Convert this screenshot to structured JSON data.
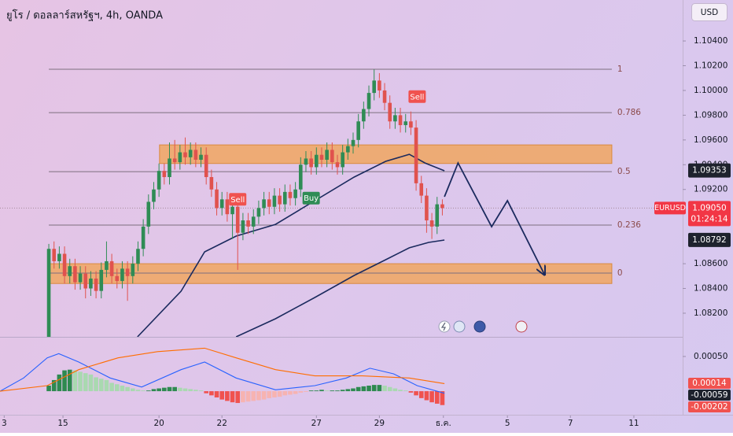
{
  "header": {
    "title": "ยูโร / ดอลลาร์สหรัฐฯ, 4h, OANDA",
    "currency_button": "USD"
  },
  "chart_data": [
    {
      "type": "candlestick",
      "xlim": [
        -9.3,
        120.8
      ],
      "xticks": [
        {
          "value": -8.5,
          "label": "3"
        },
        {
          "value": 2.7,
          "label": "15"
        },
        {
          "value": 21,
          "label": "20"
        },
        {
          "value": 33,
          "label": "22"
        },
        {
          "value": 51,
          "label": "27"
        },
        {
          "value": 63,
          "label": "29"
        },
        {
          "value": 75.2,
          "label": "ธ.ค."
        },
        {
          "value": 87.4,
          "label": "5"
        },
        {
          "value": 99.4,
          "label": "7"
        },
        {
          "value": 111.5,
          "label": "11"
        }
      ],
      "ylim": [
        1.08009,
        1.10731
      ],
      "yticks": [
        {
          "value": 1.104,
          "label": "1.10400"
        },
        {
          "value": 1.102,
          "label": "1.10200"
        },
        {
          "value": 1.1,
          "label": "1.10000"
        },
        {
          "value": 1.098,
          "label": "1.09800"
        },
        {
          "value": 1.096,
          "label": "1.09600"
        },
        {
          "value": 1.094,
          "label": "1.09400"
        },
        {
          "value": 1.092,
          "label": "1.09200"
        },
        {
          "value": 1.086,
          "label": "1.08600"
        },
        {
          "value": 1.084,
          "label": "1.08400"
        },
        {
          "value": 1.082,
          "label": "1.08200"
        }
      ],
      "colors": {
        "up": "#2f8c55",
        "down": "#e0524e"
      },
      "open": [
        1.08,
        1.0872,
        1.0862,
        1.0868,
        1.085,
        1.0858,
        1.0845,
        1.0852,
        1.084,
        1.0848,
        1.0838,
        1.0855,
        1.0862,
        1.085,
        1.0846,
        1.0856,
        1.085,
        1.086,
        1.0872,
        1.089,
        1.091,
        1.092,
        1.0935,
        1.093,
        1.0945,
        1.0942,
        1.095,
        1.0946,
        1.0952,
        1.0944,
        1.0948,
        1.093,
        1.092,
        1.0905,
        1.0912,
        1.09,
        1.0906,
        1.0885,
        1.0895,
        1.089,
        1.0898,
        1.0905,
        1.0912,
        1.0906,
        1.0915,
        1.0908,
        1.0918,
        1.0913,
        1.092,
        1.094,
        1.0945,
        1.0938,
        1.0948,
        1.0944,
        1.0952,
        1.0942,
        1.0938,
        1.095,
        1.0955,
        1.096,
        1.0975,
        1.0985,
        1.0998,
        1.1008,
        1.1,
        1.099,
        1.0975,
        1.098,
        1.0972,
        1.0975,
        1.097,
        1.0925,
        1.0915,
        1.0895,
        1.089,
        1.0908
      ],
      "high": [
        1.0876,
        1.0878,
        1.0874,
        1.0874,
        1.0864,
        1.0864,
        1.0858,
        1.0858,
        1.0854,
        1.0854,
        1.0861,
        1.0878,
        1.0868,
        1.0856,
        1.0862,
        1.0862,
        1.0866,
        1.0878,
        1.0896,
        1.0916,
        1.0926,
        1.0941,
        1.0941,
        1.0958,
        1.096,
        1.0956,
        1.0962,
        1.0958,
        1.0958,
        1.0954,
        1.0954,
        1.0936,
        1.0926,
        1.0918,
        1.0918,
        1.0912,
        1.0912,
        1.0901,
        1.0901,
        1.0904,
        1.0911,
        1.0918,
        1.0918,
        1.0921,
        1.0921,
        1.0924,
        1.0924,
        1.0926,
        1.0946,
        1.0951,
        1.0951,
        1.0954,
        1.0954,
        1.0958,
        1.0958,
        1.0948,
        1.0956,
        1.0961,
        1.0966,
        1.0981,
        1.0991,
        1.1004,
        1.1017,
        1.1014,
        1.1006,
        1.0996,
        1.0986,
        1.0986,
        1.0981,
        1.0983,
        1.0976,
        1.0931,
        1.0921,
        1.0901,
        1.0914,
        1.0912
      ],
      "low": [
        1.0798,
        1.0856,
        1.0856,
        1.0844,
        1.0844,
        1.0839,
        1.0839,
        1.0832,
        1.0834,
        1.0832,
        1.0832,
        1.0849,
        1.0844,
        1.084,
        1.084,
        1.083,
        1.0844,
        1.0854,
        1.0866,
        1.0884,
        1.0904,
        1.0914,
        1.0924,
        1.0924,
        1.0936,
        1.0936,
        1.094,
        1.094,
        1.0938,
        1.0938,
        1.0924,
        1.0914,
        1.0899,
        1.0899,
        1.0894,
        1.088,
        1.0855,
        1.0879,
        1.0884,
        1.0884,
        1.0892,
        1.0899,
        1.09,
        1.09,
        1.0902,
        1.0902,
        1.0907,
        1.0907,
        1.0914,
        1.0934,
        1.0932,
        1.0932,
        1.0938,
        1.0938,
        1.0936,
        1.0932,
        1.0932,
        1.0944,
        1.0949,
        1.0954,
        1.0969,
        1.0979,
        1.0992,
        1.0994,
        1.0984,
        1.0969,
        1.0969,
        1.0966,
        1.0966,
        1.0964,
        1.0919,
        1.0909,
        1.0885,
        1.088,
        1.0884,
        1.0899
      ],
      "close": [
        1.0872,
        1.0862,
        1.0868,
        1.085,
        1.0858,
        1.0845,
        1.0852,
        1.084,
        1.0848,
        1.0838,
        1.0855,
        1.0862,
        1.085,
        1.0846,
        1.0856,
        1.085,
        1.086,
        1.0872,
        1.089,
        1.091,
        1.092,
        1.0935,
        1.093,
        1.0945,
        1.0942,
        1.095,
        1.0946,
        1.0952,
        1.0944,
        1.0948,
        1.093,
        1.092,
        1.0905,
        1.0912,
        1.09,
        1.0906,
        1.0885,
        1.0895,
        1.089,
        1.0898,
        1.0905,
        1.0912,
        1.0906,
        1.0915,
        1.0908,
        1.0918,
        1.0913,
        1.092,
        1.094,
        1.0945,
        1.0938,
        1.0948,
        1.0944,
        1.0952,
        1.0942,
        1.0938,
        1.095,
        1.0955,
        1.096,
        1.0975,
        1.0985,
        1.0998,
        1.1008,
        1.1,
        1.099,
        1.0975,
        1.098,
        1.0972,
        1.0975,
        1.097,
        1.0925,
        1.0915,
        1.0895,
        1.089,
        1.0908,
        1.0905
      ],
      "overlays": [
        {
          "color": "#1b2a5e",
          "x": [
            16.9,
            25.2,
            29.7,
            35.7,
            43.2,
            50.7,
            58.2,
            64.2,
            68.7,
            71.7,
            75.4
          ],
          "values": [
            1.08009,
            1.08378,
            1.08696,
            1.08823,
            1.08918,
            1.09109,
            1.093,
            1.09427,
            1.09484,
            1.09414,
            1.09351
          ]
        },
        {
          "color": "#1b2a5e",
          "x": [
            35.7,
            43.2,
            50.7,
            58.2,
            64.2,
            68.7,
            72.4,
            75.4
          ],
          "values": [
            1.08009,
            1.08155,
            1.08327,
            1.08505,
            1.08632,
            1.08728,
            1.08772,
            1.08791
          ]
        }
      ],
      "fib_x": [
        0,
        107.3
      ],
      "fib_levels": [
        {
          "label": "1",
          "value": 1.10171
        },
        {
          "label": "0.786",
          "value": 1.09821
        },
        {
          "label": "0.5",
          "value": 1.09344
        },
        {
          "label": "0.236",
          "value": 1.08912
        },
        {
          "label": "0",
          "value": 1.08524
        }
      ],
      "zones": [
        {
          "x": [
            21.1,
            107.3
          ],
          "values": [
            1.0956,
            1.0941
          ]
        },
        {
          "x": [
            0,
            107.3
          ],
          "values": [
            1.086,
            1.0844
          ]
        }
      ],
      "zone_color": "#f0a660",
      "projection": {
        "color": "#1b2a5e",
        "x": [
          75.4,
          78,
          84.4,
          87.4,
          94.4
        ],
        "values": [
          1.09141,
          1.09414,
          1.08899,
          1.09109,
          1.08518
        ]
      },
      "signals": [
        {
          "label": "Sell",
          "x": 70.2,
          "value": 1.0995,
          "color": "#f0524f"
        },
        {
          "label": "Sell",
          "x": 36,
          "value": 1.0912,
          "color": "#f0524f"
        },
        {
          "label": "Buy",
          "x": 50,
          "value": 1.0913,
          "color": "#2f8c55"
        }
      ],
      "current_price": {
        "symbol": "EURUSD",
        "value": 1.0905,
        "label": "1.09050",
        "countdown": "01:24:14",
        "color": "#f23645"
      },
      "price_tags": [
        {
          "value": 1.09353,
          "label": "1.09353",
          "color": "#1e222d"
        },
        {
          "value": 1.08792,
          "label": "1.08792",
          "color": "#1e222d"
        }
      ]
    },
    {
      "type": "macd",
      "xlim": [
        -9.3,
        120.8
      ],
      "ylim": [
        -0.00026,
        0.00076
      ],
      "yticks": [
        {
          "value": 0.0005,
          "label": "0.00050"
        }
      ],
      "histogram": [
        8e-05,
        0.00016,
        0.00024,
        0.0003,
        0.00031,
        0.0003,
        0.00028,
        0.00026,
        0.00024,
        0.0002,
        0.00018,
        0.00016,
        0.00012,
        0.0001,
        8e-05,
        6e-05,
        4e-05,
        2e-05,
        1e-05,
        1e-05,
        3e-05,
        4e-05,
        5e-05,
        6e-05,
        6e-05,
        5e-05,
        4e-05,
        3e-05,
        2e-05,
        1e-05,
        -3e-05,
        -6e-05,
        -9e-05,
        -0.00012,
        -0.00014,
        -0.00016,
        -0.00017,
        -0.00016,
        -0.00015,
        -0.00014,
        -0.00013,
        -0.00012,
        -0.0001,
        -9e-05,
        -8e-05,
        -6e-05,
        -5e-05,
        -4e-05,
        -2e-05,
        -1e-05,
        1e-05,
        1e-05,
        2e-05,
        1e-05,
        1e-05,
        1e-05,
        2e-05,
        3e-05,
        4e-05,
        6e-05,
        7e-05,
        8e-05,
        9e-05,
        9e-05,
        8e-05,
        6e-05,
        4e-05,
        2e-05,
        1e-05,
        -2e-05,
        -6e-05,
        -0.0001,
        -0.00013,
        -0.00016,
        -0.00018,
        -0.0002
      ],
      "colors": {
        "up_grow": "#2e8a50",
        "up_fall": "#a9d9b0",
        "down_grow": "#f0524f",
        "down_fall": "#f7b3b1"
      },
      "series": [
        {
          "color": "#2962ff",
          "x": [
            -9.3,
            -4.8,
            -0.3,
            1.9,
            5.7,
            11.7,
            17.7,
            25.2,
            29.7,
            35.7,
            43.2,
            50.7,
            56.7,
            61.2,
            65.7,
            70.2,
            75.4
          ],
          "values": [
            0,
            0.00019,
            0.00048,
            0.00054,
            0.00042,
            0.00019,
            6e-05,
            0.00031,
            0.00042,
            0.00019,
            2e-05,
            8e-05,
            0.00019,
            0.00033,
            0.00025,
            8e-05,
            -3e-05
          ]
        },
        {
          "color": "#ff6d00",
          "x": [
            -9.3,
            -0.3,
            5.7,
            13.2,
            20.7,
            29.7,
            35.7,
            43.2,
            50.7,
            59.7,
            68.7,
            75.4
          ],
          "values": [
            0,
            8e-05,
            0.00031,
            0.00048,
            0.00057,
            0.00062,
            0.00048,
            0.00031,
            0.00022,
            0.00022,
            0.00019,
            0.00011
          ]
        }
      ],
      "value_tags": [
        {
          "label": "0.00014",
          "color": "#f0524f"
        },
        {
          "label": "-0.00059",
          "color": "#1e222d"
        },
        {
          "label": "-0.00202",
          "color": "#f0524f"
        }
      ]
    }
  ]
}
